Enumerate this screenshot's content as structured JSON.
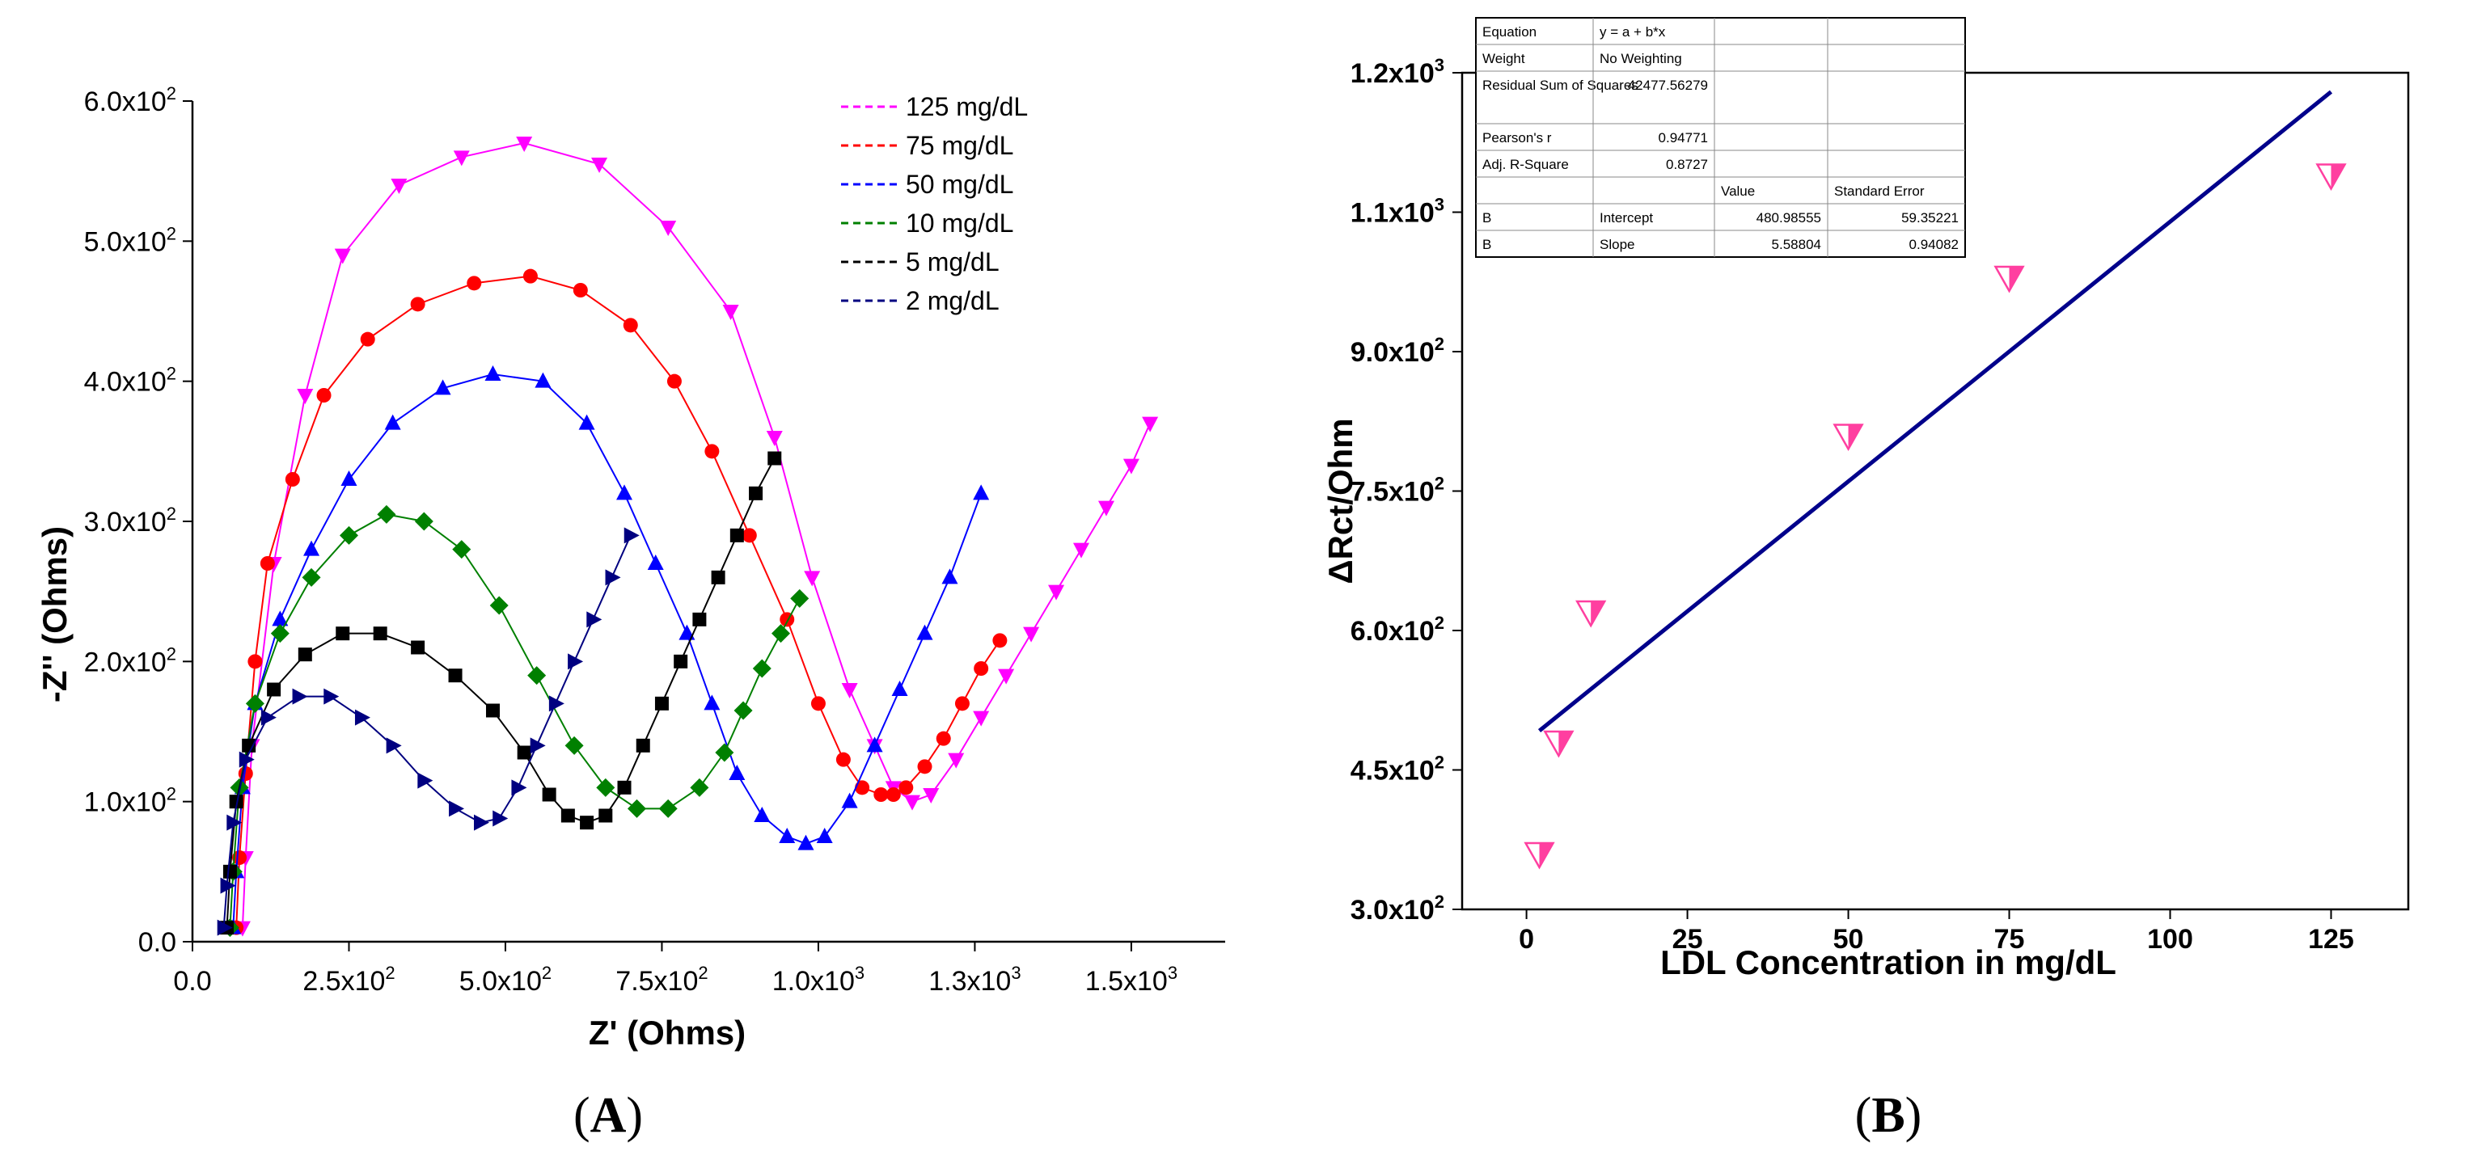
{
  "chart_data": [
    {
      "panel": "A",
      "type": "line",
      "title": "",
      "xlabel": "Z' (Ohms)",
      "ylabel": "-Z'' (Ohms)",
      "xlim": [
        0,
        1650
      ],
      "ylim": [
        0,
        600
      ],
      "grid": false,
      "legend_position": "top-right",
      "x_ticks": [
        {
          "value": 0,
          "label": "0.0"
        },
        {
          "value": 250,
          "label": "2.5x10",
          "exp": "2"
        },
        {
          "value": 500,
          "label": "5.0x10",
          "exp": "2"
        },
        {
          "value": 750,
          "label": "7.5x10",
          "exp": "2"
        },
        {
          "value": 1000,
          "label": "1.0x10",
          "exp": "3"
        },
        {
          "value": 1250,
          "label": "1.3x10",
          "exp": "3"
        },
        {
          "value": 1500,
          "label": "1.5x10",
          "exp": "3"
        }
      ],
      "y_ticks": [
        {
          "value": 0,
          "label": "0.0"
        },
        {
          "value": 100,
          "label": "1.0x10",
          "exp": "2"
        },
        {
          "value": 200,
          "label": "2.0x10",
          "exp": "2"
        },
        {
          "value": 300,
          "label": "3.0x10",
          "exp": "2"
        },
        {
          "value": 400,
          "label": "4.0x10",
          "exp": "2"
        },
        {
          "value": 500,
          "label": "5.0x10",
          "exp": "2"
        },
        {
          "value": 600,
          "label": "6.0x10",
          "exp": "2"
        }
      ],
      "series": [
        {
          "name": "125 mg/dL",
          "color": "#ff00ff",
          "marker": "triangle-down",
          "x": [
            80,
            85,
            95,
            130,
            180,
            240,
            330,
            430,
            530,
            650,
            760,
            860,
            930,
            990,
            1050,
            1090,
            1120,
            1150,
            1180,
            1220,
            1260,
            1300,
            1340,
            1380,
            1420,
            1460,
            1500,
            1530
          ],
          "y": [
            10,
            60,
            140,
            270,
            390,
            490,
            540,
            560,
            570,
            555,
            510,
            450,
            360,
            260,
            180,
            140,
            110,
            100,
            105,
            130,
            160,
            190,
            220,
            250,
            280,
            310,
            340,
            370
          ]
        },
        {
          "name": "75 mg/dL",
          "color": "#ff0000",
          "marker": "circle",
          "x": [
            70,
            75,
            85,
            100,
            120,
            160,
            210,
            280,
            360,
            450,
            540,
            620,
            700,
            770,
            830,
            890,
            950,
            1000,
            1040,
            1070,
            1100,
            1120,
            1140,
            1170,
            1200,
            1230,
            1260,
            1290
          ],
          "y": [
            10,
            60,
            120,
            200,
            270,
            330,
            390,
            430,
            455,
            470,
            475,
            465,
            440,
            400,
            350,
            290,
            230,
            170,
            130,
            110,
            105,
            105,
            110,
            125,
            145,
            170,
            195,
            215
          ]
        },
        {
          "name": "50 mg/dL",
          "color": "#0000ff",
          "marker": "triangle-up",
          "x": [
            65,
            70,
            80,
            100,
            140,
            190,
            250,
            320,
            400,
            480,
            560,
            630,
            690,
            740,
            790,
            830,
            870,
            910,
            950,
            980,
            1010,
            1050,
            1090,
            1130,
            1170,
            1210,
            1260
          ],
          "y": [
            10,
            50,
            110,
            170,
            230,
            280,
            330,
            370,
            395,
            405,
            400,
            370,
            320,
            270,
            220,
            170,
            120,
            90,
            75,
            70,
            75,
            100,
            140,
            180,
            220,
            260,
            320
          ]
        },
        {
          "name": "10 mg/dL",
          "color": "#008000",
          "marker": "diamond",
          "x": [
            60,
            65,
            75,
            100,
            140,
            190,
            250,
            310,
            370,
            430,
            490,
            550,
            610,
            660,
            710,
            760,
            810,
            850,
            880,
            910,
            940,
            970
          ],
          "y": [
            10,
            50,
            110,
            170,
            220,
            260,
            290,
            305,
            300,
            280,
            240,
            190,
            140,
            110,
            95,
            95,
            110,
            135,
            165,
            195,
            220,
            245
          ]
        },
        {
          "name": "5 mg/dL",
          "color": "#000000",
          "marker": "square",
          "x": [
            55,
            60,
            70,
            90,
            130,
            180,
            240,
            300,
            360,
            420,
            480,
            530,
            570,
            600,
            630,
            660,
            690,
            720,
            750,
            780,
            810,
            840,
            870,
            900,
            930
          ],
          "y": [
            10,
            50,
            100,
            140,
            180,
            205,
            220,
            220,
            210,
            190,
            165,
            135,
            105,
            90,
            85,
            90,
            110,
            140,
            170,
            200,
            230,
            260,
            290,
            320,
            345
          ]
        },
        {
          "name": "2 mg/dL",
          "color": "#000080",
          "marker": "triangle-right",
          "x": [
            50,
            55,
            65,
            85,
            120,
            170,
            220,
            270,
            320,
            370,
            420,
            460,
            490,
            520,
            550,
            580,
            610,
            640,
            670,
            700
          ],
          "y": [
            10,
            40,
            85,
            130,
            160,
            175,
            175,
            160,
            140,
            115,
            95,
            85,
            88,
            110,
            140,
            170,
            200,
            230,
            260,
            290
          ]
        }
      ]
    },
    {
      "panel": "B",
      "type": "scatter",
      "title": "",
      "xlabel": "LDL Concentration in mg/dL",
      "ylabel": "ΔRct/Ohm",
      "xlim": [
        -10,
        137
      ],
      "ylim": [
        300,
        1200
      ],
      "grid": false,
      "x_ticks": [
        {
          "value": 0,
          "label": "0"
        },
        {
          "value": 25,
          "label": "25"
        },
        {
          "value": 50,
          "label": "50"
        },
        {
          "value": 75,
          "label": "75"
        },
        {
          "value": 100,
          "label": "100"
        },
        {
          "value": 125,
          "label": "125"
        }
      ],
      "y_ticks": [
        {
          "value": 300,
          "label": "3.0x10",
          "exp": "2"
        },
        {
          "value": 450,
          "label": "4.5x10",
          "exp": "2"
        },
        {
          "value": 600,
          "label": "6.0x10",
          "exp": "2"
        },
        {
          "value": 750,
          "label": "7.5x10",
          "exp": "2"
        },
        {
          "value": 900,
          "label": "9.0x10",
          "exp": "2"
        },
        {
          "value": 1050,
          "label": "1.1x10",
          "exp": "3"
        },
        {
          "value": 1200,
          "label": "1.2x10",
          "exp": "3"
        }
      ],
      "points": {
        "name": "ΔRct",
        "color": "#ff3fa0",
        "marker": "triangle-down",
        "x": [
          2,
          5,
          10,
          50,
          75,
          125
        ],
        "y": [
          360,
          480,
          620,
          810,
          980,
          1090
        ]
      },
      "fit": {
        "type": "linear",
        "color": "#00008b",
        "x_range": [
          2,
          125
        ],
        "intercept": 480.98555,
        "slope": 5.58804
      },
      "stats_table": [
        [
          "Equation",
          "y = a + b*x",
          "",
          ""
        ],
        [
          "Weight",
          "No Weighting",
          "",
          ""
        ],
        [
          "Residual Sum of Squares",
          "42477.56279",
          "",
          ""
        ],
        [
          "Pearson's r",
          "0.94771",
          "",
          ""
        ],
        [
          "Adj. R-Square",
          "0.8727",
          "",
          ""
        ],
        [
          "",
          "",
          "Value",
          "Standard Error"
        ],
        [
          "B",
          "Intercept",
          "480.98555",
          "59.35221"
        ],
        [
          "B",
          "Slope",
          "5.58804",
          "0.94082"
        ]
      ]
    }
  ],
  "panel_labels": {
    "a": "A",
    "b": "B"
  }
}
